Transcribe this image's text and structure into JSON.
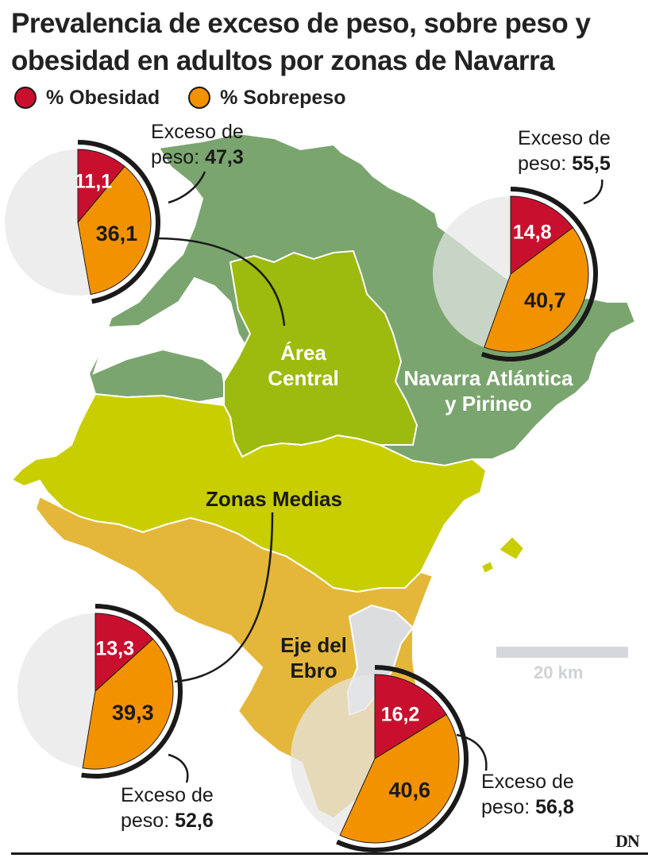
{
  "title": {
    "line1": "Prevalencia de exceso de peso, sobre peso y",
    "line2": "obesidad en adultos por zonas de Navarra"
  },
  "legend": {
    "obesity": {
      "label": "% Obesidad",
      "color": "#c8102e"
    },
    "overweight": {
      "label": "% Sobrepeso",
      "color": "#f39200"
    }
  },
  "colors": {
    "atlantica": "#7ba56f",
    "central": "#9dba0e",
    "medias": "#c8ce00",
    "ebro": "#e4b73a",
    "excluded": "#dcdddf",
    "ring": "#1a1a1a",
    "pie_bg": "#e6e6e8"
  },
  "zones": [
    {
      "id": "central",
      "name_lines": [
        "Área",
        "Central"
      ],
      "obesity": 11.1,
      "overweight": 36.1,
      "excess_label": "Exceso de",
      "excess_prefix": "peso:",
      "excess_value": "47,3",
      "obesity_text": "11,1",
      "overweight_text": "36,1"
    },
    {
      "id": "atlantica",
      "name_lines": [
        "Navarra Atlántica",
        "y Pirineo"
      ],
      "obesity": 14.8,
      "overweight": 40.7,
      "excess_label": "Exceso de",
      "excess_prefix": "peso:",
      "excess_value": "55,5",
      "obesity_text": "14,8",
      "overweight_text": "40,7"
    },
    {
      "id": "medias",
      "name_lines": [
        "Zonas Medias"
      ],
      "obesity": 13.3,
      "overweight": 39.3,
      "excess_label": "Exceso de",
      "excess_prefix": "peso:",
      "excess_value": "52,6",
      "obesity_text": "13,3",
      "overweight_text": "39,3"
    },
    {
      "id": "ebro",
      "name_lines": [
        "Eje del",
        "Ebro"
      ],
      "obesity": 16.2,
      "overweight": 40.6,
      "excess_label": "Exceso de",
      "excess_prefix": "peso:",
      "excess_value": "56,8",
      "obesity_text": "16,2",
      "overweight_text": "40,6"
    }
  ],
  "scale": {
    "label": "20 km"
  },
  "source_logo": "DN"
}
